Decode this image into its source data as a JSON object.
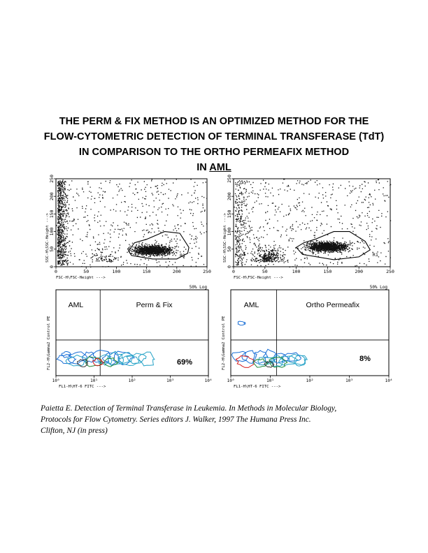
{
  "title": {
    "line1": "THE PERM & FIX METHOD IS AN OPTIMIZED METHOD FOR THE",
    "line2": "FLOW-CYTOMETRIC DETECTION OF TERMINAL TRANSFERASE (TdT)",
    "line3": "IN COMPARISON TO THE ORTHO PERMEAFIX METHOD",
    "line4_prefix": "IN ",
    "line4_underlined": "AML"
  },
  "chart_data": [
    {
      "type": "scatter",
      "panel": "top-left",
      "xlabel": "FSC-H\\FSC-Height --->",
      "ylabel": "SSC-H\\SSC-Height --->",
      "xticks": [
        "0",
        "50",
        "100",
        "150",
        "200",
        "250"
      ],
      "yticks": [
        "0",
        "50",
        "100",
        "150",
        "200",
        "250"
      ],
      "xlim": [
        0,
        250
      ],
      "ylim": [
        0,
        250
      ],
      "gate_label": "R1",
      "gate": [
        [
          120,
          45
        ],
        [
          130,
          68
        ],
        [
          150,
          78
        ],
        [
          180,
          100
        ],
        [
          205,
          95
        ],
        [
          220,
          55
        ],
        [
          218,
          38
        ],
        [
          200,
          22
        ],
        [
          160,
          22
        ],
        [
          125,
          32
        ]
      ]
    },
    {
      "type": "scatter",
      "panel": "top-right",
      "xlabel": "FSC-H\\FSC-Height --->",
      "ylabel": "SSC-H\\SSC-Height --->",
      "xticks": [
        "0",
        "50",
        "100",
        "150",
        "200",
        "250"
      ],
      "yticks": [
        "0",
        "50",
        "100",
        "150",
        "200",
        "250"
      ],
      "xlim": [
        0,
        250
      ],
      "ylim": [
        0,
        250
      ],
      "gate_label": "R1",
      "gate": [
        [
          100,
          55
        ],
        [
          112,
          68
        ],
        [
          130,
          78
        ],
        [
          160,
          100
        ],
        [
          185,
          100
        ],
        [
          210,
          72
        ],
        [
          218,
          48
        ],
        [
          200,
          28
        ],
        [
          160,
          20
        ],
        [
          110,
          35
        ]
      ]
    },
    {
      "type": "contour",
      "panel": "bottom-left",
      "xlabel": "FL1-H\\HT-6 FITC --->",
      "ylabel": "FL2-H\\Gamma2 Control PE",
      "xticks": [
        "10⁰",
        "10¹",
        "10²",
        "10³",
        "10⁴"
      ],
      "scale": "log",
      "corner_label": "50% Log",
      "quadrant_left_label": "AML",
      "quadrant_right_label": "Perm & Fix",
      "percentage": "69%"
    },
    {
      "type": "contour",
      "panel": "bottom-right",
      "xlabel": "FL1-H\\HT-6 FITC --->",
      "ylabel": "FL2-H\\Gamma2 Control PE",
      "xticks": [
        "10⁰",
        "10¹",
        "10²",
        "10³",
        "10⁴"
      ],
      "scale": "log",
      "corner_label": "50% Log",
      "quadrant_left_label": "AML",
      "quadrant_right_label": "Ortho Permeafix",
      "percentage": "8%"
    }
  ],
  "colors": {
    "contour_blue": "#1a6fd6",
    "contour_cyan": "#27a3c7",
    "contour_green": "#1f8a3a",
    "contour_red": "#d61a1a"
  },
  "caption": {
    "line1": "Paietta E. Detection of Terminal Transferase in Leukemia. In Methods in Molecular Biology,",
    "line2": "Protocols for Flow Cytometry. Series editors J. Walker, 1997 The Humana Press Inc.",
    "line3": "Clifton, NJ (in press)"
  }
}
